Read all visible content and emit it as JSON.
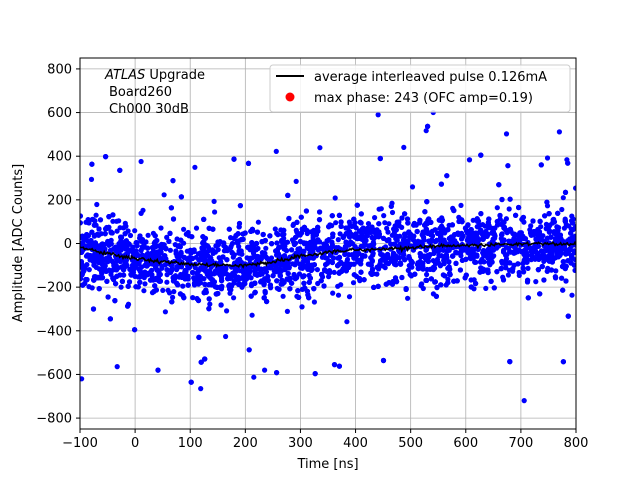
{
  "chart_data": {
    "type": "scatter",
    "title": "",
    "xlabel": "Time [ns]",
    "ylabel": "Amplitude [ADC Counts]",
    "xlim": [
      -100,
      800
    ],
    "ylim": [
      -850,
      850
    ],
    "xticks": [
      -100,
      0,
      100,
      200,
      300,
      400,
      500,
      600,
      700,
      800
    ],
    "yticks": [
      -800,
      -600,
      -400,
      -200,
      0,
      200,
      400,
      600,
      800
    ],
    "grid": true,
    "legend_position": "top-right",
    "annotation": {
      "experiment": "ATLAS",
      "experiment_suffix": " Upgrade",
      "line2": "Board260",
      "line3": "Ch000 30dB"
    },
    "series": [
      {
        "name": "average interleaved pulse 0.126mA",
        "kind": "line",
        "color": "#000000",
        "x": [
          -100,
          -50,
          0,
          50,
          100,
          150,
          200,
          250,
          300,
          350,
          400,
          450,
          500,
          550,
          600,
          650,
          700,
          750,
          800
        ],
        "y": [
          -20,
          -45,
          -70,
          -85,
          -95,
          -100,
          -100,
          -85,
          -60,
          -40,
          -30,
          -25,
          -20,
          -12,
          -8,
          -5,
          -3,
          -2,
          0
        ]
      },
      {
        "name": "max phase: 243 (OFC amp=0.19)",
        "kind": "marker",
        "color": "#ff0000",
        "x": [],
        "y": []
      }
    ],
    "scatter_cloud": {
      "color": "#0000ff",
      "x_range": [
        -100,
        800
      ],
      "core_half_width": 200,
      "outliers_max": 600,
      "outliers_min": -720,
      "highlighted_outliers": [
        {
          "x": -97,
          "y": -620
        },
        {
          "x": 119,
          "y": -665
        },
        {
          "x": 706,
          "y": -720
        },
        {
          "x": 541,
          "y": 600
        },
        {
          "x": 441,
          "y": 590
        }
      ]
    }
  }
}
